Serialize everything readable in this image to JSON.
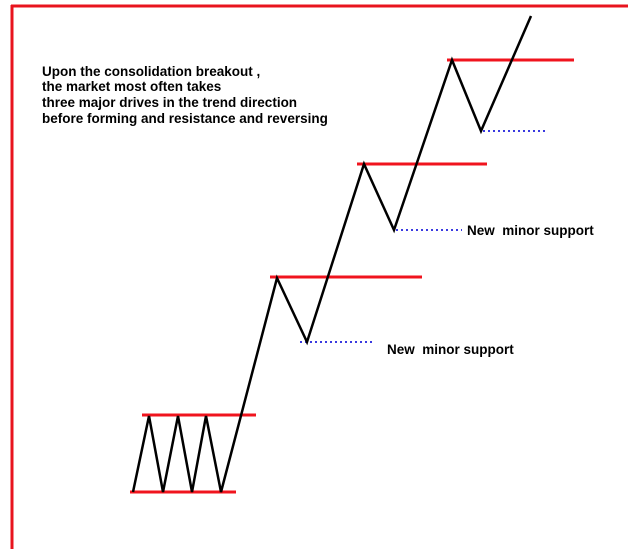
{
  "description": {
    "lines": [
      "Upon the consolidation breakout ,",
      "the market most often takes",
      "three major drives in the trend direction",
      "before forming and resistance and reversing"
    ]
  },
  "labels": [
    "New  minor support",
    "New  minor support"
  ]
}
